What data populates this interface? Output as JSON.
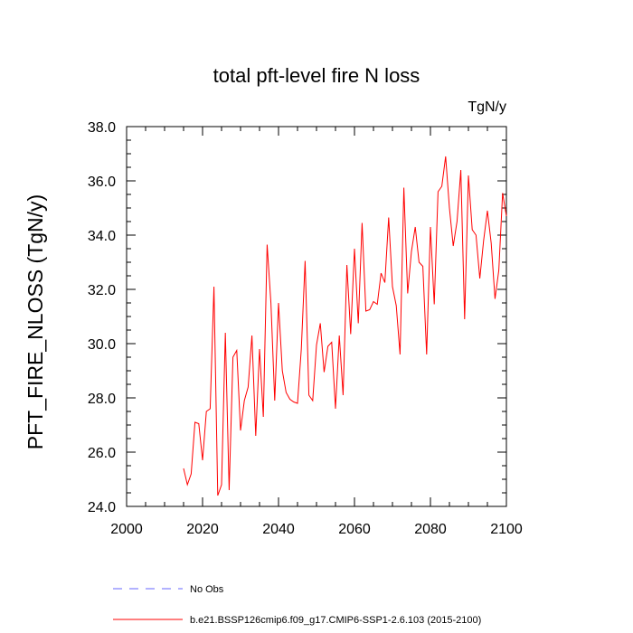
{
  "chart_data": {
    "type": "line",
    "title": "total pft-level fire N loss",
    "units_label": "TgN/y",
    "ylabel": "PFT_FIRE_NLOSS  (TgN/y)",
    "xlabel": "",
    "xlim": [
      2000,
      2100
    ],
    "ylim": [
      24.0,
      38.0
    ],
    "xticks": [
      2000,
      2020,
      2040,
      2060,
      2080,
      2100
    ],
    "xtick_labels": [
      "2000",
      "2020",
      "2040",
      "2060",
      "2080",
      "2100"
    ],
    "yticks": [
      24.0,
      26.0,
      28.0,
      30.0,
      32.0,
      34.0,
      36.0,
      38.0
    ],
    "ytick_labels": [
      "24.0",
      "26.0",
      "28.0",
      "30.0",
      "32.0",
      "34.0",
      "36.0",
      "38.0"
    ],
    "grid": false,
    "legend_position": "bottom",
    "series": [
      {
        "name": "b.e21.BSSP126cmip6.f09_g17.CMIP6-SSP1-2.6.103 (2015-2100)",
        "color": "#ff0000",
        "style": "solid",
        "x": [
          2015,
          2016,
          2017,
          2018,
          2019,
          2020,
          2021,
          2022,
          2023,
          2024,
          2025,
          2026,
          2027,
          2028,
          2029,
          2030,
          2031,
          2032,
          2033,
          2034,
          2035,
          2036,
          2037,
          2038,
          2039,
          2040,
          2041,
          2042,
          2043,
          2044,
          2045,
          2046,
          2047,
          2048,
          2049,
          2050,
          2051,
          2052,
          2053,
          2054,
          2055,
          2056,
          2057,
          2058,
          2059,
          2060,
          2061,
          2062,
          2063,
          2064,
          2065,
          2066,
          2067,
          2068,
          2069,
          2070,
          2071,
          2072,
          2073,
          2074,
          2075,
          2076,
          2077,
          2078,
          2079,
          2080,
          2081,
          2082,
          2083,
          2084,
          2085,
          2086,
          2087,
          2088,
          2089,
          2090,
          2091,
          2092,
          2093,
          2094,
          2095,
          2096,
          2097,
          2098,
          2099,
          2100
        ],
        "values": [
          25.4,
          24.8,
          25.2,
          27.1,
          27.05,
          25.7,
          27.5,
          27.6,
          32.1,
          24.4,
          24.8,
          30.4,
          24.6,
          29.5,
          29.75,
          26.8,
          27.9,
          28.4,
          30.3,
          26.6,
          29.8,
          27.3,
          33.65,
          31.5,
          27.9,
          31.5,
          29.0,
          28.2,
          27.95,
          27.85,
          27.8,
          29.8,
          33.05,
          28.1,
          27.9,
          29.95,
          30.75,
          28.95,
          29.9,
          30.05,
          27.6,
          30.3,
          28.1,
          32.9,
          30.35,
          33.5,
          30.75,
          34.45,
          31.2,
          31.25,
          31.55,
          31.45,
          32.6,
          32.25,
          34.65,
          32.1,
          31.4,
          29.6,
          35.75,
          31.85,
          33.4,
          34.3,
          33.0,
          32.85,
          29.6,
          34.3,
          31.45,
          35.6,
          35.8,
          36.9,
          35.0,
          33.6,
          34.5,
          36.4,
          30.9,
          36.2,
          34.2,
          34.0,
          32.4,
          33.8,
          34.9,
          33.7,
          31.65,
          32.7,
          35.55,
          34.7
        ]
      },
      {
        "name": "No Obs",
        "color": "#6666ff",
        "style": "dashed",
        "x": [],
        "values": []
      }
    ]
  }
}
